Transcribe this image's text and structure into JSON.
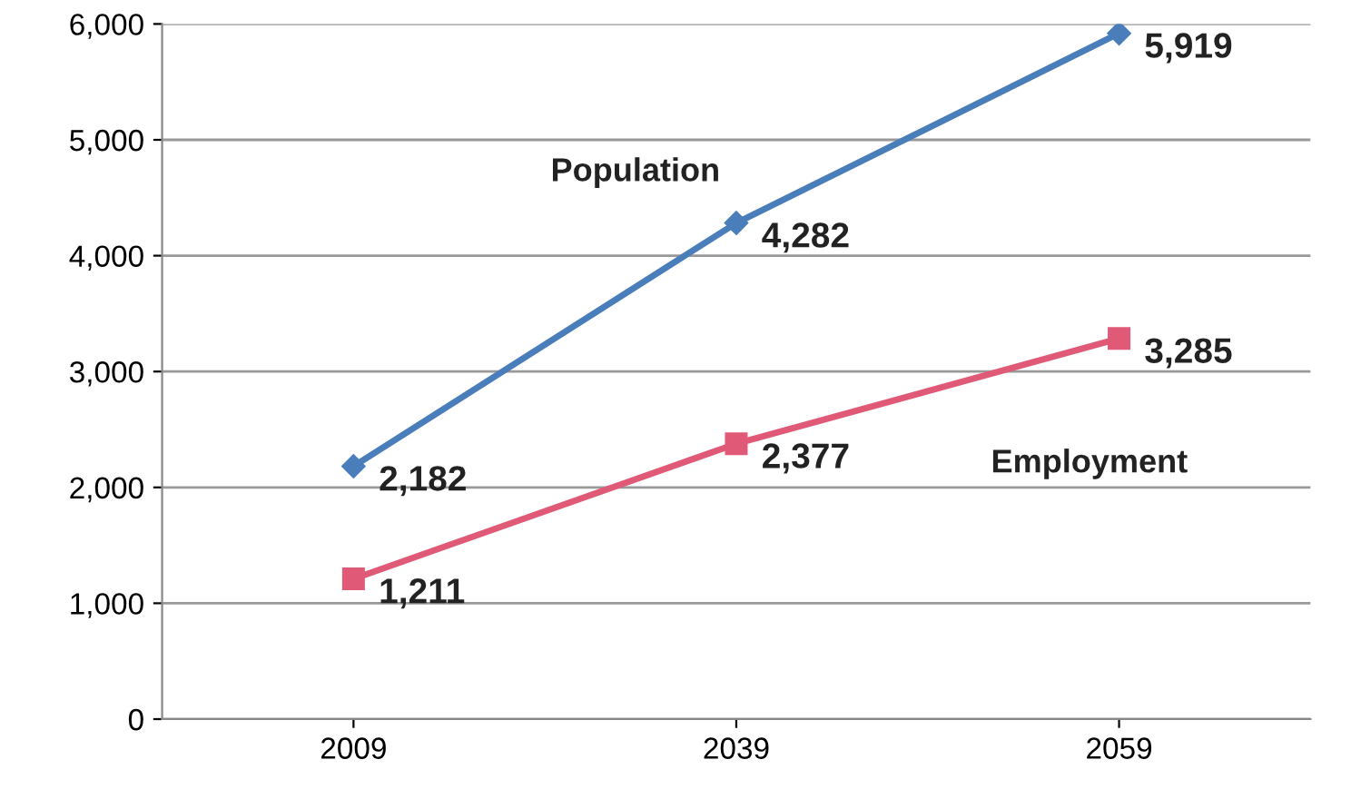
{
  "chart_data": {
    "type": "line",
    "categories": [
      "2009",
      "2039",
      "2059"
    ],
    "series": [
      {
        "name": "Population",
        "color": "#4a7ebb",
        "marker": "diamond",
        "values": [
          2182,
          4282,
          5919
        ],
        "value_labels": [
          "2,182",
          "4,282",
          "5,919"
        ]
      },
      {
        "name": "Employment",
        "color": "#e05a78",
        "marker": "square",
        "values": [
          1211,
          2377,
          3285
        ],
        "value_labels": [
          "1,211",
          "2,377",
          "3,285"
        ]
      }
    ],
    "ylim": [
      0,
      6000
    ],
    "yticks": [
      0,
      {
        "value": 1000,
        "label": "1,000"
      },
      {
        "value": 2000,
        "label": "2,000"
      },
      {
        "value": 3000,
        "label": "3,000"
      },
      {
        "value": 4000,
        "label": "4,000"
      },
      {
        "value": 5000,
        "label": "5,000"
      },
      {
        "value": 6000,
        "label": "6,000"
      }
    ],
    "grid": "y",
    "line_style": "solid",
    "legend": false
  }
}
